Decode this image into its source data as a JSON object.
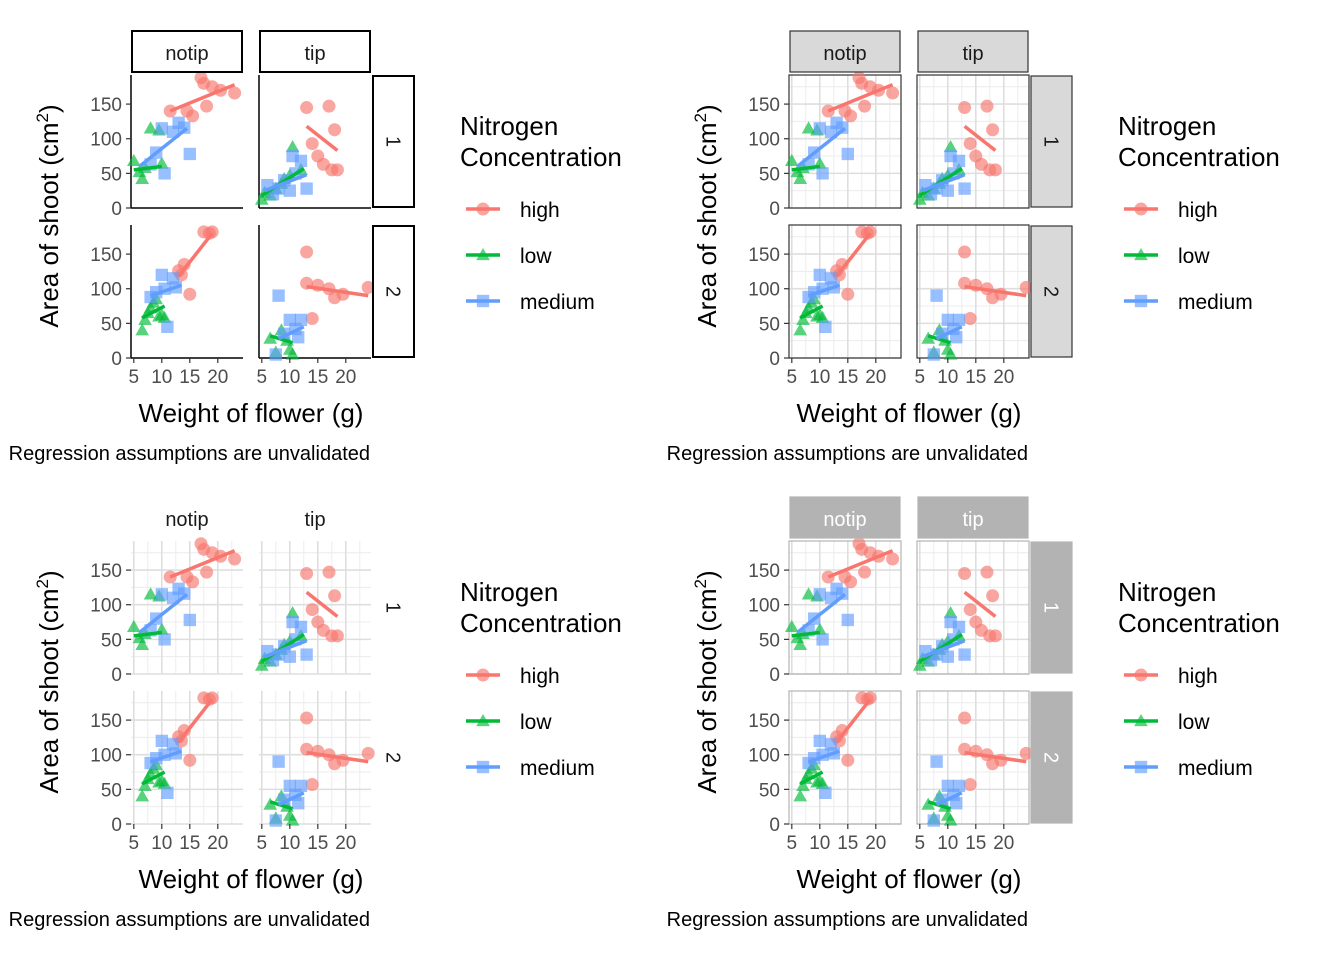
{
  "chart_data": {
    "type": "scatter",
    "description_free": true,
    "xlabel": "Weight of flower (g)",
    "ylabel_main": "Area of shoot (cm",
    "ylabel_sup": "2",
    "ylabel_close": ")",
    "caption": "Regression assumptions are unvalidated",
    "xlim": [
      4.5,
      24.5
    ],
    "ylim": [
      0,
      192
    ],
    "x_ticks": [
      5,
      10,
      15,
      20
    ],
    "y_ticks": [
      0,
      50,
      100,
      150
    ],
    "facet_cols": [
      "notip",
      "tip"
    ],
    "facet_rows": [
      "1",
      "2"
    ],
    "legend": {
      "title_line1": "Nitrogen",
      "title_line2": "Concentration",
      "position": "right",
      "entries": [
        {
          "key": "high",
          "label": "high",
          "shape": "circle",
          "color": "#F8766D"
        },
        {
          "key": "low",
          "label": "low",
          "shape": "triangle",
          "color": "#00BA38"
        },
        {
          "key": "medium",
          "label": "medium",
          "shape": "square",
          "color": "#619CFF"
        }
      ]
    },
    "themes": [
      {
        "name": "theme-linedraw-style",
        "grid": false,
        "panel_border": false,
        "strip_fill": "#ffffff",
        "strip_border": "#000000",
        "strip_text": "#1a1a1a"
      },
      {
        "name": "theme-bw-style",
        "grid": true,
        "panel_border": true,
        "strip_fill": "#d9d9d9",
        "strip_border": "#333333",
        "strip_text": "#1a1a1a"
      },
      {
        "name": "theme-minimal-style",
        "grid": true,
        "panel_border": false,
        "strip_fill": "none",
        "strip_border": "none",
        "strip_text": "#1a1a1a"
      },
      {
        "name": "theme-light-style",
        "grid": true,
        "panel_border": true,
        "strip_fill": "#b3b3b3",
        "strip_border": "#b3b3b3",
        "strip_text": "#ffffff"
      }
    ],
    "panels": {
      "notip-1": {
        "points": [
          {
            "g": "high",
            "x": 11.5,
            "y": 140
          },
          {
            "g": "high",
            "x": 14.5,
            "y": 140
          },
          {
            "g": "high",
            "x": 15.5,
            "y": 133
          },
          {
            "g": "high",
            "x": 17,
            "y": 188
          },
          {
            "g": "high",
            "x": 17.5,
            "y": 180
          },
          {
            "g": "high",
            "x": 18,
            "y": 147
          },
          {
            "g": "high",
            "x": 19,
            "y": 175
          },
          {
            "g": "high",
            "x": 20.5,
            "y": 170
          },
          {
            "g": "high",
            "x": 23,
            "y": 166
          },
          {
            "g": "low",
            "x": 5,
            "y": 68
          },
          {
            "g": "low",
            "x": 6,
            "y": 52
          },
          {
            "g": "low",
            "x": 6.5,
            "y": 42
          },
          {
            "g": "low",
            "x": 7,
            "y": 58
          },
          {
            "g": "low",
            "x": 8,
            "y": 115
          },
          {
            "g": "low",
            "x": 9.5,
            "y": 112
          },
          {
            "g": "low",
            "x": 10,
            "y": 64
          },
          {
            "g": "medium",
            "x": 8,
            "y": 63
          },
          {
            "g": "medium",
            "x": 9,
            "y": 80
          },
          {
            "g": "medium",
            "x": 10,
            "y": 115
          },
          {
            "g": "medium",
            "x": 10.5,
            "y": 50
          },
          {
            "g": "medium",
            "x": 12,
            "y": 110
          },
          {
            "g": "medium",
            "x": 13,
            "y": 123
          },
          {
            "g": "medium",
            "x": 14,
            "y": 116
          },
          {
            "g": "medium",
            "x": 15,
            "y": 78
          }
        ],
        "fits": [
          {
            "g": "high",
            "x1": 11.5,
            "y1": 140,
            "x2": 23,
            "y2": 178
          },
          {
            "g": "low",
            "x1": 5,
            "y1": 55,
            "x2": 10,
            "y2": 60
          },
          {
            "g": "medium",
            "x1": 6,
            "y1": 60,
            "x2": 14.5,
            "y2": 115
          }
        ]
      },
      "tip-1": {
        "points": [
          {
            "g": "high",
            "x": 13,
            "y": 145
          },
          {
            "g": "high",
            "x": 14,
            "y": 93
          },
          {
            "g": "high",
            "x": 15,
            "y": 75
          },
          {
            "g": "high",
            "x": 16,
            "y": 63
          },
          {
            "g": "high",
            "x": 17,
            "y": 147
          },
          {
            "g": "high",
            "x": 17.5,
            "y": 55
          },
          {
            "g": "high",
            "x": 18,
            "y": 113
          },
          {
            "g": "high",
            "x": 18.5,
            "y": 55
          },
          {
            "g": "low",
            "x": 5,
            "y": 12
          },
          {
            "g": "low",
            "x": 5.5,
            "y": 22
          },
          {
            "g": "low",
            "x": 6.5,
            "y": 18
          },
          {
            "g": "low",
            "x": 7.5,
            "y": 28
          },
          {
            "g": "low",
            "x": 8.5,
            "y": 35
          },
          {
            "g": "low",
            "x": 9,
            "y": 42
          },
          {
            "g": "low",
            "x": 10,
            "y": 47
          },
          {
            "g": "low",
            "x": 10.5,
            "y": 88
          },
          {
            "g": "low",
            "x": 12,
            "y": 55
          },
          {
            "g": "medium",
            "x": 6,
            "y": 33
          },
          {
            "g": "medium",
            "x": 7,
            "y": 20
          },
          {
            "g": "medium",
            "x": 8,
            "y": 28
          },
          {
            "g": "medium",
            "x": 9,
            "y": 40
          },
          {
            "g": "medium",
            "x": 10,
            "y": 25
          },
          {
            "g": "medium",
            "x": 10.5,
            "y": 75
          },
          {
            "g": "medium",
            "x": 11,
            "y": 50
          },
          {
            "g": "medium",
            "x": 12,
            "y": 68
          },
          {
            "g": "medium",
            "x": 13,
            "y": 28
          }
        ],
        "fits": [
          {
            "g": "high",
            "x1": 13,
            "y1": 118,
            "x2": 18.5,
            "y2": 83
          },
          {
            "g": "low",
            "x1": 5,
            "y1": 18,
            "x2": 12.5,
            "y2": 57
          },
          {
            "g": "medium",
            "x1": 5.5,
            "y1": 25,
            "x2": 13,
            "y2": 48
          }
        ]
      },
      "notip-2": {
        "points": [
          {
            "g": "high",
            "x": 13,
            "y": 126
          },
          {
            "g": "high",
            "x": 13.5,
            "y": 120
          },
          {
            "g": "high",
            "x": 14,
            "y": 135
          },
          {
            "g": "high",
            "x": 15,
            "y": 92
          },
          {
            "g": "high",
            "x": 17.5,
            "y": 182
          },
          {
            "g": "high",
            "x": 18.5,
            "y": 180
          },
          {
            "g": "high",
            "x": 19,
            "y": 182
          },
          {
            "g": "low",
            "x": 6.5,
            "y": 40
          },
          {
            "g": "low",
            "x": 7,
            "y": 55
          },
          {
            "g": "low",
            "x": 7.5,
            "y": 65
          },
          {
            "g": "low",
            "x": 8,
            "y": 72
          },
          {
            "g": "low",
            "x": 8.5,
            "y": 80
          },
          {
            "g": "low",
            "x": 9,
            "y": 85
          },
          {
            "g": "low",
            "x": 9.5,
            "y": 60
          },
          {
            "g": "low",
            "x": 10,
            "y": 62
          },
          {
            "g": "low",
            "x": 10.5,
            "y": 58
          },
          {
            "g": "medium",
            "x": 8,
            "y": 88
          },
          {
            "g": "medium",
            "x": 9,
            "y": 95
          },
          {
            "g": "medium",
            "x": 10,
            "y": 120
          },
          {
            "g": "medium",
            "x": 10.5,
            "y": 100
          },
          {
            "g": "medium",
            "x": 11,
            "y": 45
          },
          {
            "g": "medium",
            "x": 12,
            "y": 115
          },
          {
            "g": "medium",
            "x": 12.5,
            "y": 102
          }
        ],
        "fits": [
          {
            "g": "high",
            "x1": 13,
            "y1": 118,
            "x2": 19,
            "y2": 180
          },
          {
            "g": "low",
            "x1": 6.5,
            "y1": 58,
            "x2": 10.5,
            "y2": 75
          },
          {
            "g": "medium",
            "x1": 8,
            "y1": 90,
            "x2": 13.5,
            "y2": 105
          }
        ]
      },
      "tip-2": {
        "points": [
          {
            "g": "high",
            "x": 13,
            "y": 153
          },
          {
            "g": "high",
            "x": 13,
            "y": 108
          },
          {
            "g": "high",
            "x": 14,
            "y": 57
          },
          {
            "g": "high",
            "x": 15,
            "y": 105
          },
          {
            "g": "high",
            "x": 17,
            "y": 100
          },
          {
            "g": "high",
            "x": 18,
            "y": 87
          },
          {
            "g": "high",
            "x": 19.5,
            "y": 92
          },
          {
            "g": "high",
            "x": 24,
            "y": 102
          },
          {
            "g": "low",
            "x": 6.5,
            "y": 28
          },
          {
            "g": "low",
            "x": 7.5,
            "y": 8
          },
          {
            "g": "low",
            "x": 8.5,
            "y": 40
          },
          {
            "g": "low",
            "x": 9.5,
            "y": 25
          },
          {
            "g": "low",
            "x": 10,
            "y": 12
          },
          {
            "g": "low",
            "x": 10.5,
            "y": 5
          },
          {
            "g": "medium",
            "x": 7.5,
            "y": 5
          },
          {
            "g": "medium",
            "x": 8,
            "y": 90
          },
          {
            "g": "medium",
            "x": 9,
            "y": 35
          },
          {
            "g": "medium",
            "x": 10,
            "y": 55
          },
          {
            "g": "medium",
            "x": 11,
            "y": 42
          },
          {
            "g": "medium",
            "x": 11.5,
            "y": 30
          },
          {
            "g": "medium",
            "x": 12,
            "y": 55
          }
        ],
        "fits": [
          {
            "g": "high",
            "x1": 13,
            "y1": 103,
            "x2": 24,
            "y2": 90
          },
          {
            "g": "low",
            "x1": 6.5,
            "y1": 32,
            "x2": 10.5,
            "y2": 22
          },
          {
            "g": "medium",
            "x1": 8,
            "y1": 28,
            "x2": 12.5,
            "y2": 45
          }
        ]
      }
    }
  }
}
